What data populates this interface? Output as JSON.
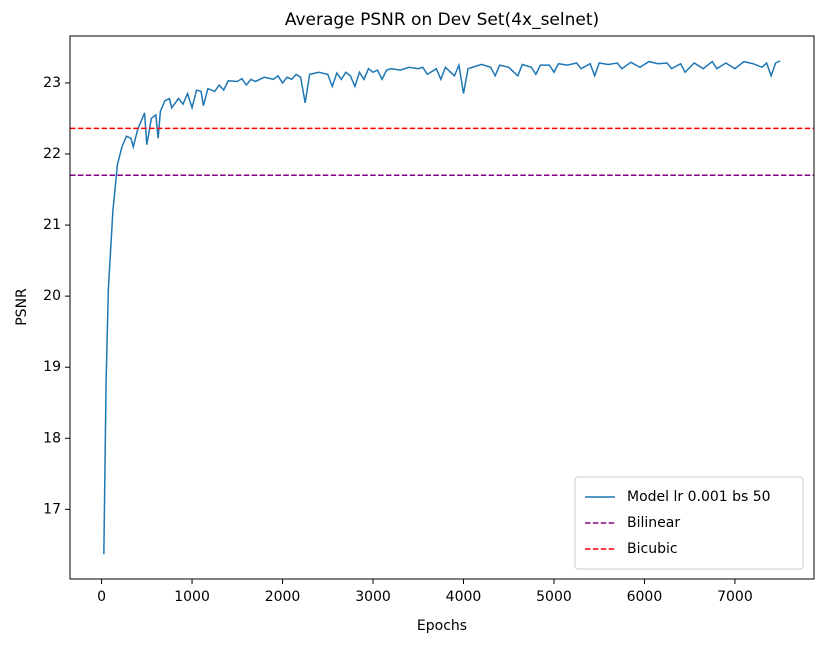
{
  "chart_data": {
    "type": "line",
    "title": "Average PSNR on Dev Set(4x_selnet)",
    "xlabel": "Epochs",
    "ylabel": "PSNR",
    "x": [
      25,
      50,
      75,
      125,
      175,
      225,
      275,
      325,
      350,
      400,
      450,
      475,
      500,
      550,
      600,
      625,
      650,
      700,
      750,
      775,
      850,
      900,
      950,
      1000,
      1050,
      1100,
      1125,
      1175,
      1250,
      1300,
      1350,
      1400,
      1500,
      1550,
      1600,
      1650,
      1700,
      1800,
      1900,
      1950,
      2000,
      2050,
      2100,
      2150,
      2200,
      2250,
      2300,
      2400,
      2500,
      2550,
      2600,
      2650,
      2700,
      2750,
      2800,
      2850,
      2900,
      2950,
      3000,
      3050,
      3100,
      3150,
      3200,
      3300,
      3400,
      3500,
      3550,
      3600,
      3700,
      3750,
      3800,
      3900,
      3950,
      4000,
      4050,
      4100,
      4200,
      4300,
      4350,
      4400,
      4500,
      4600,
      4650,
      4750,
      4800,
      4850,
      4950,
      5000,
      5050,
      5150,
      5250,
      5300,
      5400,
      5450,
      5500,
      5600,
      5700,
      5750,
      5850,
      5950,
      6050,
      6150,
      6250,
      6300,
      6400,
      6450,
      6550,
      6650,
      6750,
      6800,
      6900,
      7000,
      7100,
      7200,
      7300,
      7350,
      7400,
      7450,
      7500
    ],
    "series": [
      {
        "name": "Model lr 0.001 bs 50",
        "color": "#1f77b4",
        "values": [
          16.37,
          18.8,
          20.1,
          21.2,
          21.85,
          22.1,
          22.25,
          22.22,
          22.1,
          22.35,
          22.5,
          22.58,
          22.13,
          22.5,
          22.55,
          22.22,
          22.6,
          22.75,
          22.78,
          22.65,
          22.78,
          22.7,
          22.85,
          22.65,
          22.9,
          22.88,
          22.68,
          22.92,
          22.88,
          22.97,
          22.9,
          23.03,
          23.02,
          23.06,
          22.97,
          23.05,
          23.02,
          23.08,
          23.05,
          23.1,
          23.0,
          23.08,
          23.05,
          23.12,
          23.08,
          22.72,
          23.12,
          23.15,
          23.12,
          22.95,
          23.14,
          23.05,
          23.15,
          23.1,
          22.95,
          23.15,
          23.05,
          23.2,
          23.15,
          23.18,
          23.05,
          23.18,
          23.2,
          23.18,
          23.22,
          23.2,
          23.22,
          23.12,
          23.2,
          23.05,
          23.22,
          23.1,
          23.25,
          22.85,
          23.2,
          23.22,
          23.26,
          23.22,
          23.1,
          23.25,
          23.22,
          23.1,
          23.26,
          23.22,
          23.12,
          23.25,
          23.25,
          23.15,
          23.27,
          23.25,
          23.28,
          23.2,
          23.27,
          23.1,
          23.28,
          23.26,
          23.28,
          23.2,
          23.29,
          23.22,
          23.3,
          23.27,
          23.28,
          23.2,
          23.27,
          23.15,
          23.28,
          23.2,
          23.3,
          23.2,
          23.28,
          23.2,
          23.3,
          23.27,
          23.22,
          23.28,
          23.1,
          23.28,
          23.31
        ]
      }
    ],
    "hlines": [
      {
        "name": "Bilinear",
        "color": "#800080",
        "value": 21.7,
        "dashed": true
      },
      {
        "name": "Bicubic",
        "color": "#ff0000",
        "value": 22.36,
        "dashed": true
      }
    ],
    "xlim": [
      -349,
      7874
    ],
    "ylim": [
      16.02,
      23.66
    ],
    "xticks": [
      0,
      1000,
      2000,
      3000,
      4000,
      5000,
      6000,
      7000
    ],
    "yticks": [
      17,
      18,
      19,
      20,
      21,
      22,
      23
    ],
    "legend": "lower right"
  }
}
